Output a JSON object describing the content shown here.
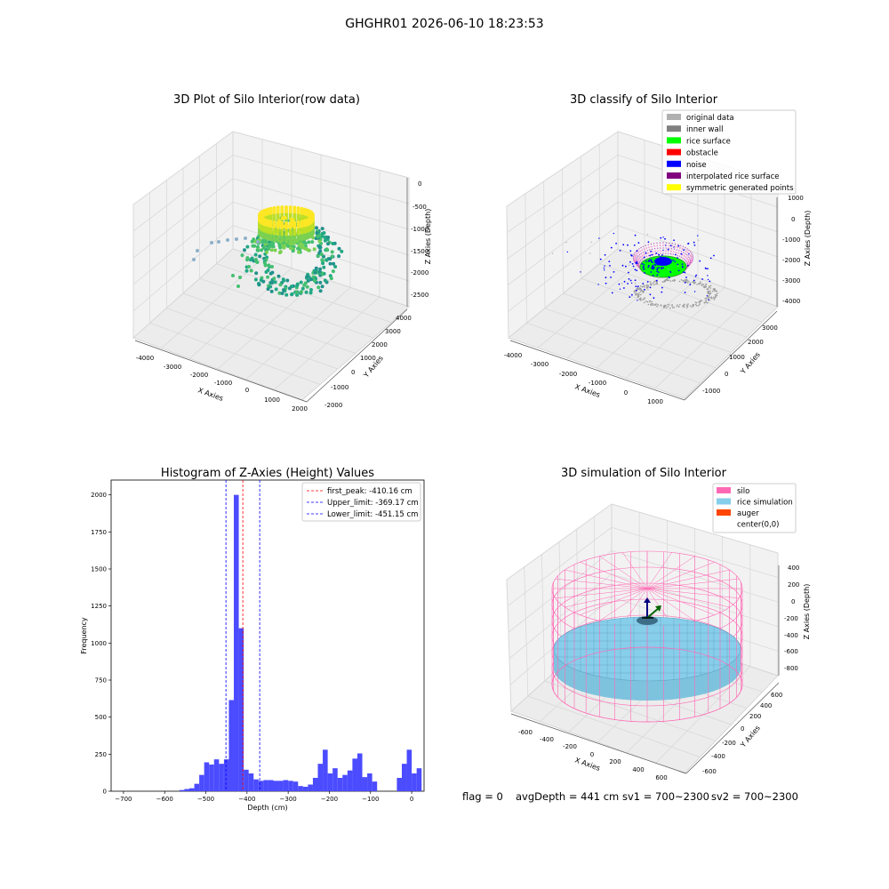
{
  "title": "GHGHR01 2026-06-10 18:23:53",
  "footer": {
    "flag": "flag = 0",
    "avg": "avgDepth = 441 cm",
    "sv1": "sv1 = 700~2300",
    "sv2": "sv2 = 700~2300"
  },
  "colors": {
    "hist_bar": "#4b4bff",
    "first_peak_line": "#ff0000",
    "limit_line": "#0000ff",
    "silo": "#ff69b4",
    "rice_simulation": "#87ceeb",
    "auger": "#ff4500"
  },
  "chart_data": [
    {
      "type": "scatter3d",
      "title": "3D Plot of Silo Interior(row data)",
      "xlabel": "X Axies",
      "ylabel": "Y Axies",
      "zlabel": "Z Axies (Depth)",
      "x_ticks": [
        "-4000",
        "-3000",
        "-2000",
        "-1000",
        "0",
        "1000",
        "2000"
      ],
      "y_ticks": [
        "-2000",
        "-1000",
        "0",
        "1000",
        "2000",
        "3000",
        "4000"
      ],
      "z_ticks": [
        "0",
        "-500",
        "-1000",
        "-1500",
        "-2000",
        "-2500"
      ],
      "colormap": "viridis"
    },
    {
      "type": "scatter3d",
      "title": "3D classify of Silo Interior",
      "xlabel": "X Axies",
      "ylabel": "Y Axies",
      "zlabel": "Z Axies (Depth)",
      "x_ticks": [
        "-4000",
        "-3000",
        "-2000",
        "-1000",
        "0",
        "1000"
      ],
      "y_ticks": [
        "-1000",
        "0",
        "1000",
        "2000",
        "3000"
      ],
      "z_ticks": [
        "1000",
        "0",
        "-1000",
        "-2000",
        "-3000",
        "-4000"
      ],
      "legend_position": "top-right",
      "legend": [
        {
          "label": "original data",
          "color": "#b0b0b0"
        },
        {
          "label": "inner wall",
          "color": "#808080"
        },
        {
          "label": "rice surface",
          "color": "#00ff00"
        },
        {
          "label": "obstacle",
          "color": "#ff0000"
        },
        {
          "label": "noise",
          "color": "#0000ff"
        },
        {
          "label": "interpolated rice surface",
          "color": "#800080"
        },
        {
          "label": "symmetric generated points",
          "color": "#ffff00"
        }
      ]
    },
    {
      "type": "bar",
      "title": "Histogram of Z-Axies (Height) Values",
      "xlabel": "Depth (cm)",
      "ylabel": "Frequency",
      "xlim": [
        -730,
        30
      ],
      "ylim": [
        0,
        2100
      ],
      "bin_width": 12,
      "x_ticks": [
        -700,
        -600,
        -500,
        -400,
        -300,
        -200,
        -100,
        0
      ],
      "y_ticks": [
        0,
        250,
        500,
        750,
        1000,
        1250,
        1500,
        1750,
        2000
      ],
      "legend_position": "top-right",
      "bins": [
        {
          "x0": -564,
          "v": 8
        },
        {
          "x0": -552,
          "v": 15
        },
        {
          "x0": -540,
          "v": 20
        },
        {
          "x0": -528,
          "v": 50
        },
        {
          "x0": -516,
          "v": 110
        },
        {
          "x0": -504,
          "v": 195
        },
        {
          "x0": -492,
          "v": 180
        },
        {
          "x0": -480,
          "v": 215
        },
        {
          "x0": -468,
          "v": 185
        },
        {
          "x0": -456,
          "v": 215
        },
        {
          "x0": -444,
          "v": 615
        },
        {
          "x0": -432,
          "v": 2000
        },
        {
          "x0": -420,
          "v": 1100
        },
        {
          "x0": -408,
          "v": 145
        },
        {
          "x0": -396,
          "v": 120
        },
        {
          "x0": -384,
          "v": 80
        },
        {
          "x0": -372,
          "v": 70
        },
        {
          "x0": -360,
          "v": 75
        },
        {
          "x0": -348,
          "v": 75
        },
        {
          "x0": -336,
          "v": 70
        },
        {
          "x0": -324,
          "v": 70
        },
        {
          "x0": -312,
          "v": 75
        },
        {
          "x0": -300,
          "v": 70
        },
        {
          "x0": -288,
          "v": 65
        },
        {
          "x0": -276,
          "v": 35
        },
        {
          "x0": -264,
          "v": 30
        },
        {
          "x0": -252,
          "v": 45
        },
        {
          "x0": -240,
          "v": 90
        },
        {
          "x0": -228,
          "v": 185
        },
        {
          "x0": -216,
          "v": 280
        },
        {
          "x0": -204,
          "v": 120
        },
        {
          "x0": -192,
          "v": 155
        },
        {
          "x0": -180,
          "v": 90
        },
        {
          "x0": -168,
          "v": 110
        },
        {
          "x0": -156,
          "v": 140
        },
        {
          "x0": -144,
          "v": 220
        },
        {
          "x0": -132,
          "v": 255
        },
        {
          "x0": -120,
          "v": 95
        },
        {
          "x0": -108,
          "v": 120
        },
        {
          "x0": -96,
          "v": 65
        }
      ],
      "shift": 420,
      "lines": [
        {
          "label": "first_peak: -410.16 cm",
          "x": -410.16,
          "color": "#ff0000"
        },
        {
          "label": "Upper_limit: -369.17 cm",
          "x": -369.17,
          "color": "#0000ff"
        },
        {
          "label": "Lower_limit: -451.15 cm",
          "x": -451.15,
          "color": "#0000ff"
        }
      ]
    },
    {
      "type": "surface3d",
      "title": "3D simulation of Silo Interior",
      "xlabel": "X Axies",
      "ylabel": "Y Axies",
      "zlabel": "Z Axies (Depth)",
      "x_ticks": [
        "-600",
        "-400",
        "-200",
        "0",
        "200",
        "400",
        "600"
      ],
      "y_ticks": [
        "-600",
        "-400",
        "-200",
        "0",
        "200",
        "400",
        "600"
      ],
      "z_ticks": [
        "400",
        "200",
        "0",
        "-200",
        "-400",
        "-600",
        "-800"
      ],
      "legend_position": "top-right",
      "legend": [
        {
          "label": "silo",
          "color": "#ff69b4"
        },
        {
          "label": "rice simulation",
          "color": "#87ceeb"
        },
        {
          "label": "auger",
          "color": "#ff4500"
        },
        {
          "label": "center(0,0)",
          "color": ""
        }
      ]
    }
  ]
}
